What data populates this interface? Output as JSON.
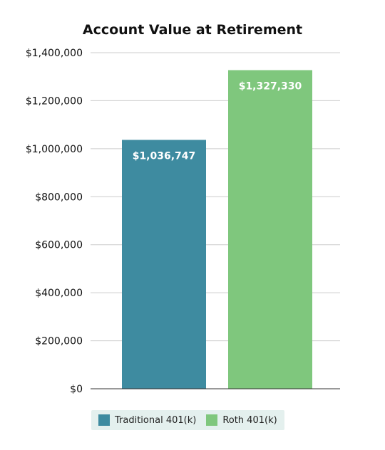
{
  "chart_data": {
    "type": "bar",
    "title": "Account Value at Retirement",
    "xlabel": "",
    "ylabel": "",
    "ylim": [
      0,
      1400000
    ],
    "yticks": [
      0,
      200000,
      400000,
      600000,
      800000,
      1000000,
      1200000,
      1400000
    ],
    "ytick_labels": [
      "$0",
      "$200,000",
      "$400,000",
      "$600,000",
      "$800,000",
      "$1,000,000",
      "$1,200,000",
      "$1,400,000"
    ],
    "grid": true,
    "legend_position": "bottom",
    "series": [
      {
        "name": "Traditional 401(k)",
        "value": 1036747,
        "label": "$1,036,747",
        "color": "#3e8ba0"
      },
      {
        "name": "Roth 401(k)",
        "value": 1327330,
        "label": "$1,327,330",
        "color": "#7fc77d"
      }
    ]
  },
  "legend": {
    "items": [
      {
        "label": "Traditional 401(k)",
        "color": "#3e8ba0"
      },
      {
        "label": "Roth 401(k)",
        "color": "#7fc77d"
      }
    ]
  }
}
